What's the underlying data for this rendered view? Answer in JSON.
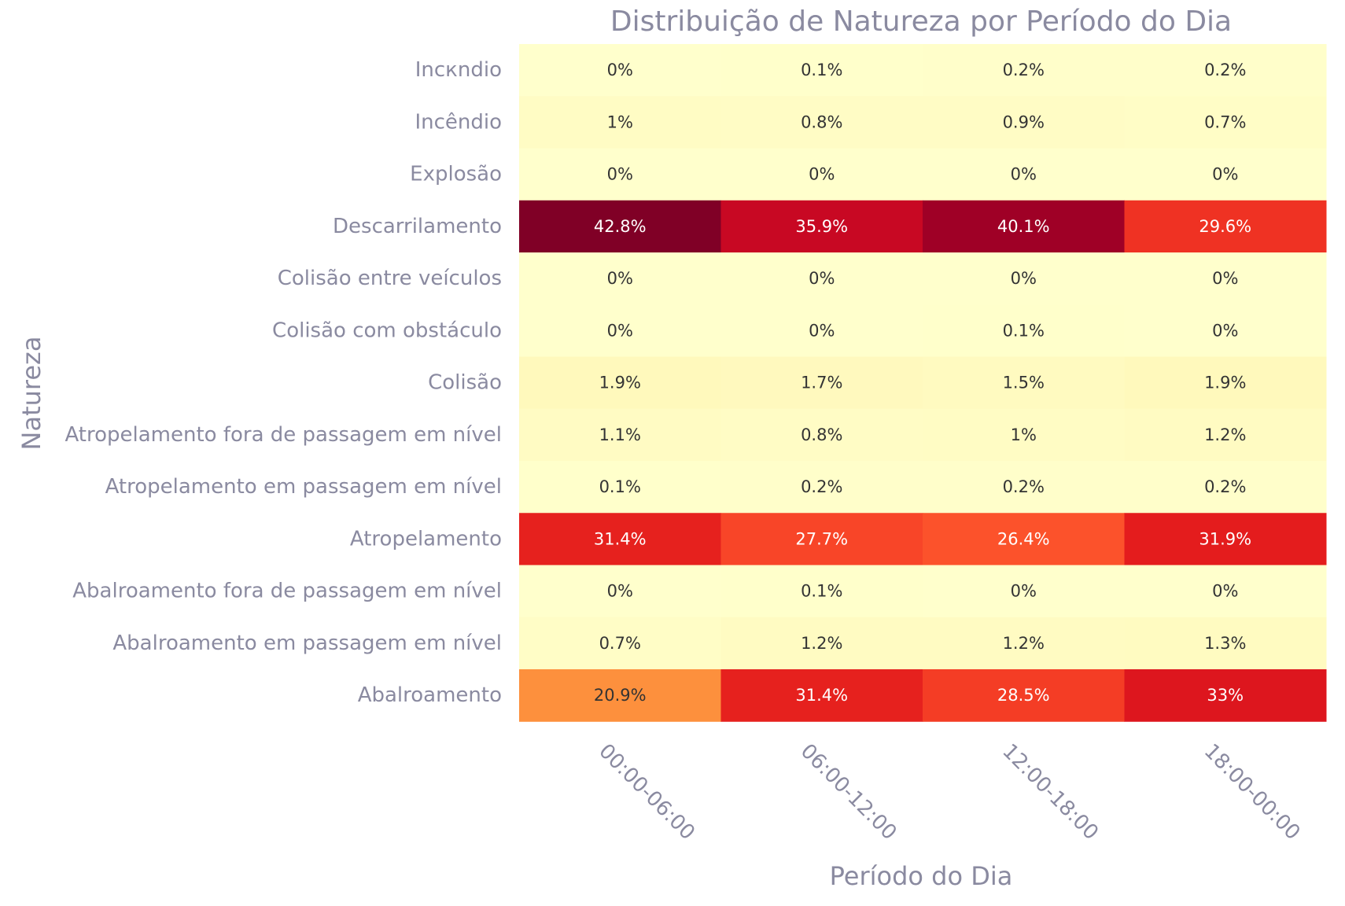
{
  "chart_data": {
    "type": "heatmap",
    "title": "Distribuição de Natureza por Período do Dia",
    "xlabel": "Período do Dia",
    "ylabel": "Natureza",
    "x": [
      "00:00-06:00",
      "06:00-12:00",
      "12:00-18:00",
      "18:00-00:00"
    ],
    "y": [
      "Incкndio",
      "Incêndio",
      "Explosão",
      "Descarrilamento",
      "Colisão entre veículos",
      "Colisão com obstáculo",
      "Colisão",
      "Atropelamento fora de passagem em nível",
      "Atropelamento em passagem em nível",
      "Atropelamento",
      "Abalroamento fora de passagem em nível",
      "Abalroamento em passagem em nível",
      "Abalroamento"
    ],
    "values": [
      [
        0,
        0.1,
        0.2,
        0.2
      ],
      [
        1,
        0.8,
        0.9,
        0.7
      ],
      [
        0,
        0,
        0,
        0
      ],
      [
        42.8,
        35.9,
        40.1,
        29.6
      ],
      [
        0,
        0,
        0,
        0
      ],
      [
        0,
        0,
        0.1,
        0
      ],
      [
        1.9,
        1.7,
        1.5,
        1.9
      ],
      [
        1.1,
        0.8,
        1,
        1.2
      ],
      [
        0.1,
        0.2,
        0.2,
        0.2
      ],
      [
        31.4,
        27.7,
        26.4,
        31.9
      ],
      [
        0,
        0.1,
        0,
        0
      ],
      [
        0.7,
        1.2,
        1.2,
        1.3
      ],
      [
        20.9,
        31.4,
        28.5,
        33
      ]
    ],
    "labels": [
      [
        "0%",
        "0.1%",
        "0.2%",
        "0.2%"
      ],
      [
        "1%",
        "0.8%",
        "0.9%",
        "0.7%"
      ],
      [
        "0%",
        "0%",
        "0%",
        "0%"
      ],
      [
        "42.8%",
        "35.9%",
        "40.1%",
        "29.6%"
      ],
      [
        "0%",
        "0%",
        "0%",
        "0%"
      ],
      [
        "0%",
        "0%",
        "0.1%",
        "0%"
      ],
      [
        "1.9%",
        "1.7%",
        "1.5%",
        "1.9%"
      ],
      [
        "1.1%",
        "0.8%",
        "1%",
        "1.2%"
      ],
      [
        "0.1%",
        "0.2%",
        "0.2%",
        "0.2%"
      ],
      [
        "31.4%",
        "27.7%",
        "26.4%",
        "31.9%"
      ],
      [
        "0%",
        "0.1%",
        "0%",
        "0%"
      ],
      [
        "0.7%",
        "1.2%",
        "1.2%",
        "1.3%"
      ],
      [
        "20.9%",
        "31.4%",
        "28.5%",
        "33%"
      ]
    ],
    "colorscale": "YlOrRd",
    "zrange": [
      0,
      42.8
    ],
    "legend": "none",
    "grid": false
  }
}
